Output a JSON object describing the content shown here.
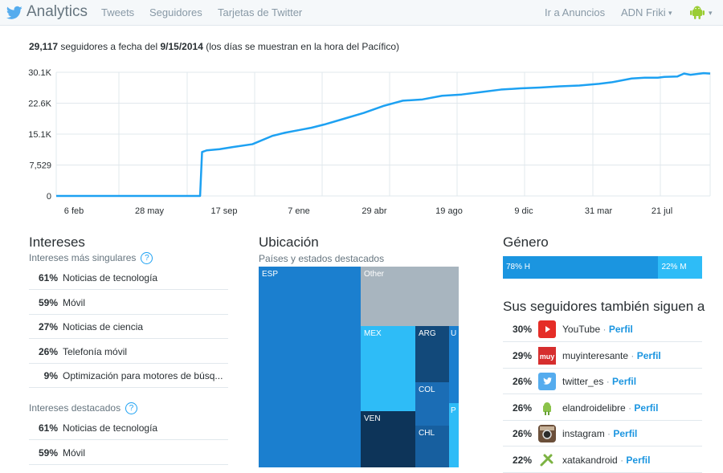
{
  "nav": {
    "brand": "Analytics",
    "links": [
      "Tweets",
      "Seguidores",
      "Tarjetas de Twitter"
    ],
    "ads": "Ir a Anuncios",
    "account": "ADN Friki",
    "chevron": "▾",
    "brand_color": "#1da1f2"
  },
  "summary": {
    "count": "29,117",
    "pre": "seguidores a fecha del",
    "date": "9/15/2014",
    "post": "(los días se muestran en la hora del Pacífico)"
  },
  "chart_data": {
    "type": "line",
    "title": "",
    "xlabel": "",
    "ylabel": "",
    "yticks": [
      "30.1K",
      "22.6K",
      "15.1K",
      "7,529",
      "0"
    ],
    "ytick_values": [
      30116,
      22587,
      15058,
      7529,
      0
    ],
    "xticks": [
      "6 feb",
      "28 may",
      "17 sep",
      "7 ene",
      "29 abr",
      "19 ago",
      "9 dic",
      "31 mar",
      "21 jul"
    ],
    "ylim": [
      0,
      30116
    ],
    "x_index_range": [
      0,
      100
    ],
    "series": [
      {
        "name": "Seguidores",
        "color": "#1da1f2",
        "x": [
          0,
          22.0,
          22.3,
          23.0,
          25.0,
          27.0,
          30.0,
          33.0,
          35.0,
          37.0,
          39.0,
          41.0,
          44.0,
          47.0,
          50.0,
          53.0,
          56.0,
          59.0,
          62.0,
          65.0,
          68.0,
          71.0,
          74.0,
          77.0,
          80.0,
          83.0,
          85.0,
          88.0,
          90.0,
          92.0,
          93.0,
          95.0,
          96.0,
          97.0,
          99.0,
          100.0
        ],
        "y": [
          0,
          0,
          10700,
          11100,
          11400,
          11900,
          12600,
          14600,
          15400,
          16000,
          16600,
          17400,
          18800,
          20200,
          21900,
          23200,
          23500,
          24400,
          24700,
          25300,
          25900,
          26200,
          26400,
          26700,
          26900,
          27300,
          27700,
          28600,
          28800,
          28800,
          29000,
          29100,
          29800,
          29500,
          29900,
          29800
        ]
      }
    ]
  },
  "interests": {
    "title": "Intereses",
    "unique_title": "Intereses más singulares",
    "help": "?",
    "unique": [
      {
        "pct": "61%",
        "label": "Noticias de tecnología"
      },
      {
        "pct": "59%",
        "label": "Móvil"
      },
      {
        "pct": "27%",
        "label": "Noticias de ciencia"
      },
      {
        "pct": "26%",
        "label": "Telefonía móvil"
      },
      {
        "pct": "9%",
        "label": "Optimización para motores de búsq..."
      }
    ],
    "top_title": "Intereses destacados",
    "top": [
      {
        "pct": "61%",
        "label": "Noticias de tecnología"
      },
      {
        "pct": "59%",
        "label": "Móvil"
      }
    ]
  },
  "location": {
    "title": "Ubicación",
    "subtitle": "Países y estados destacados",
    "cells": [
      "ESP",
      "Other",
      "MEX",
      "ARG",
      "U",
      "COL",
      "P",
      "VEN",
      "CHL"
    ]
  },
  "gender": {
    "title": "Género",
    "male_label": "78% H",
    "female_label": "22% M",
    "male_fraction": 0.78,
    "female_fraction": 0.22,
    "male_color": "#1b95e0",
    "female_color": "#2ebcf7"
  },
  "follows": {
    "title": "Sus seguidores también siguen a",
    "sep": "·",
    "profile_label": "Perfil",
    "items": [
      {
        "pct": "30%",
        "name": "YouTube"
      },
      {
        "pct": "29%",
        "name": "muyinteresante"
      },
      {
        "pct": "26%",
        "name": "twitter_es"
      },
      {
        "pct": "26%",
        "name": "elandroidelibre"
      },
      {
        "pct": "26%",
        "name": "instagram"
      },
      {
        "pct": "22%",
        "name": "xatakandroid"
      }
    ],
    "icon_texts": [
      "muy"
    ]
  }
}
